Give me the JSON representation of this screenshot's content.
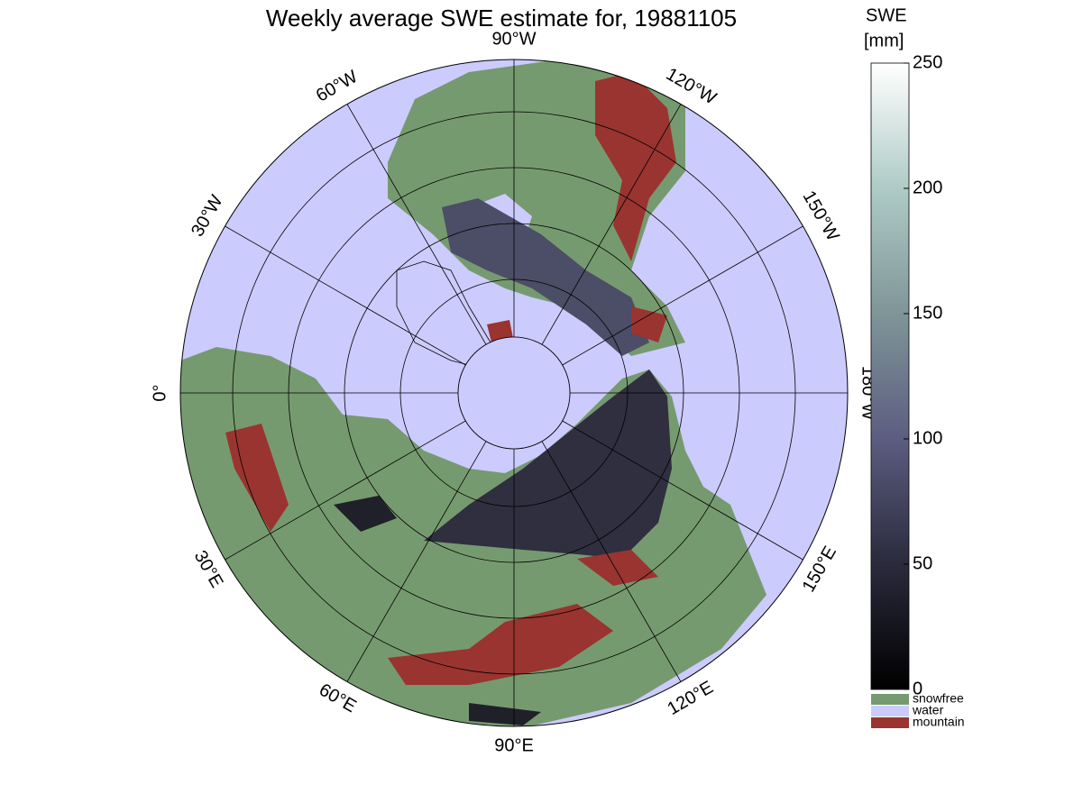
{
  "title": "Weekly average SWE estimate for, 19881105",
  "longitude_labels": [
    {
      "value": -90,
      "label": "90°W"
    },
    {
      "value": -120,
      "label": "120°W"
    },
    {
      "value": -150,
      "label": "150°W"
    },
    {
      "value": -180,
      "label": "180°W"
    },
    {
      "value": 150,
      "label": "150°E"
    },
    {
      "value": 120,
      "label": "120°E"
    },
    {
      "value": 90,
      "label": "90°E"
    },
    {
      "value": 60,
      "label": "60°E"
    },
    {
      "value": 30,
      "label": "30°E"
    },
    {
      "value": 0,
      "label": "0°"
    },
    {
      "value": -30,
      "label": "30°W"
    },
    {
      "value": -60,
      "label": "60°W"
    }
  ],
  "colorbar": {
    "title": [
      "SWE",
      "[mm]"
    ],
    "lim": [
      0,
      250
    ],
    "ticks": [
      0,
      50,
      100,
      150,
      200,
      250
    ],
    "classes": [
      {
        "label": "snowfree",
        "color": "#769a6f"
      },
      {
        "label": "water",
        "color": "#cccbfe"
      },
      {
        "label": "mountain",
        "color": "#9a3430"
      }
    ]
  }
}
